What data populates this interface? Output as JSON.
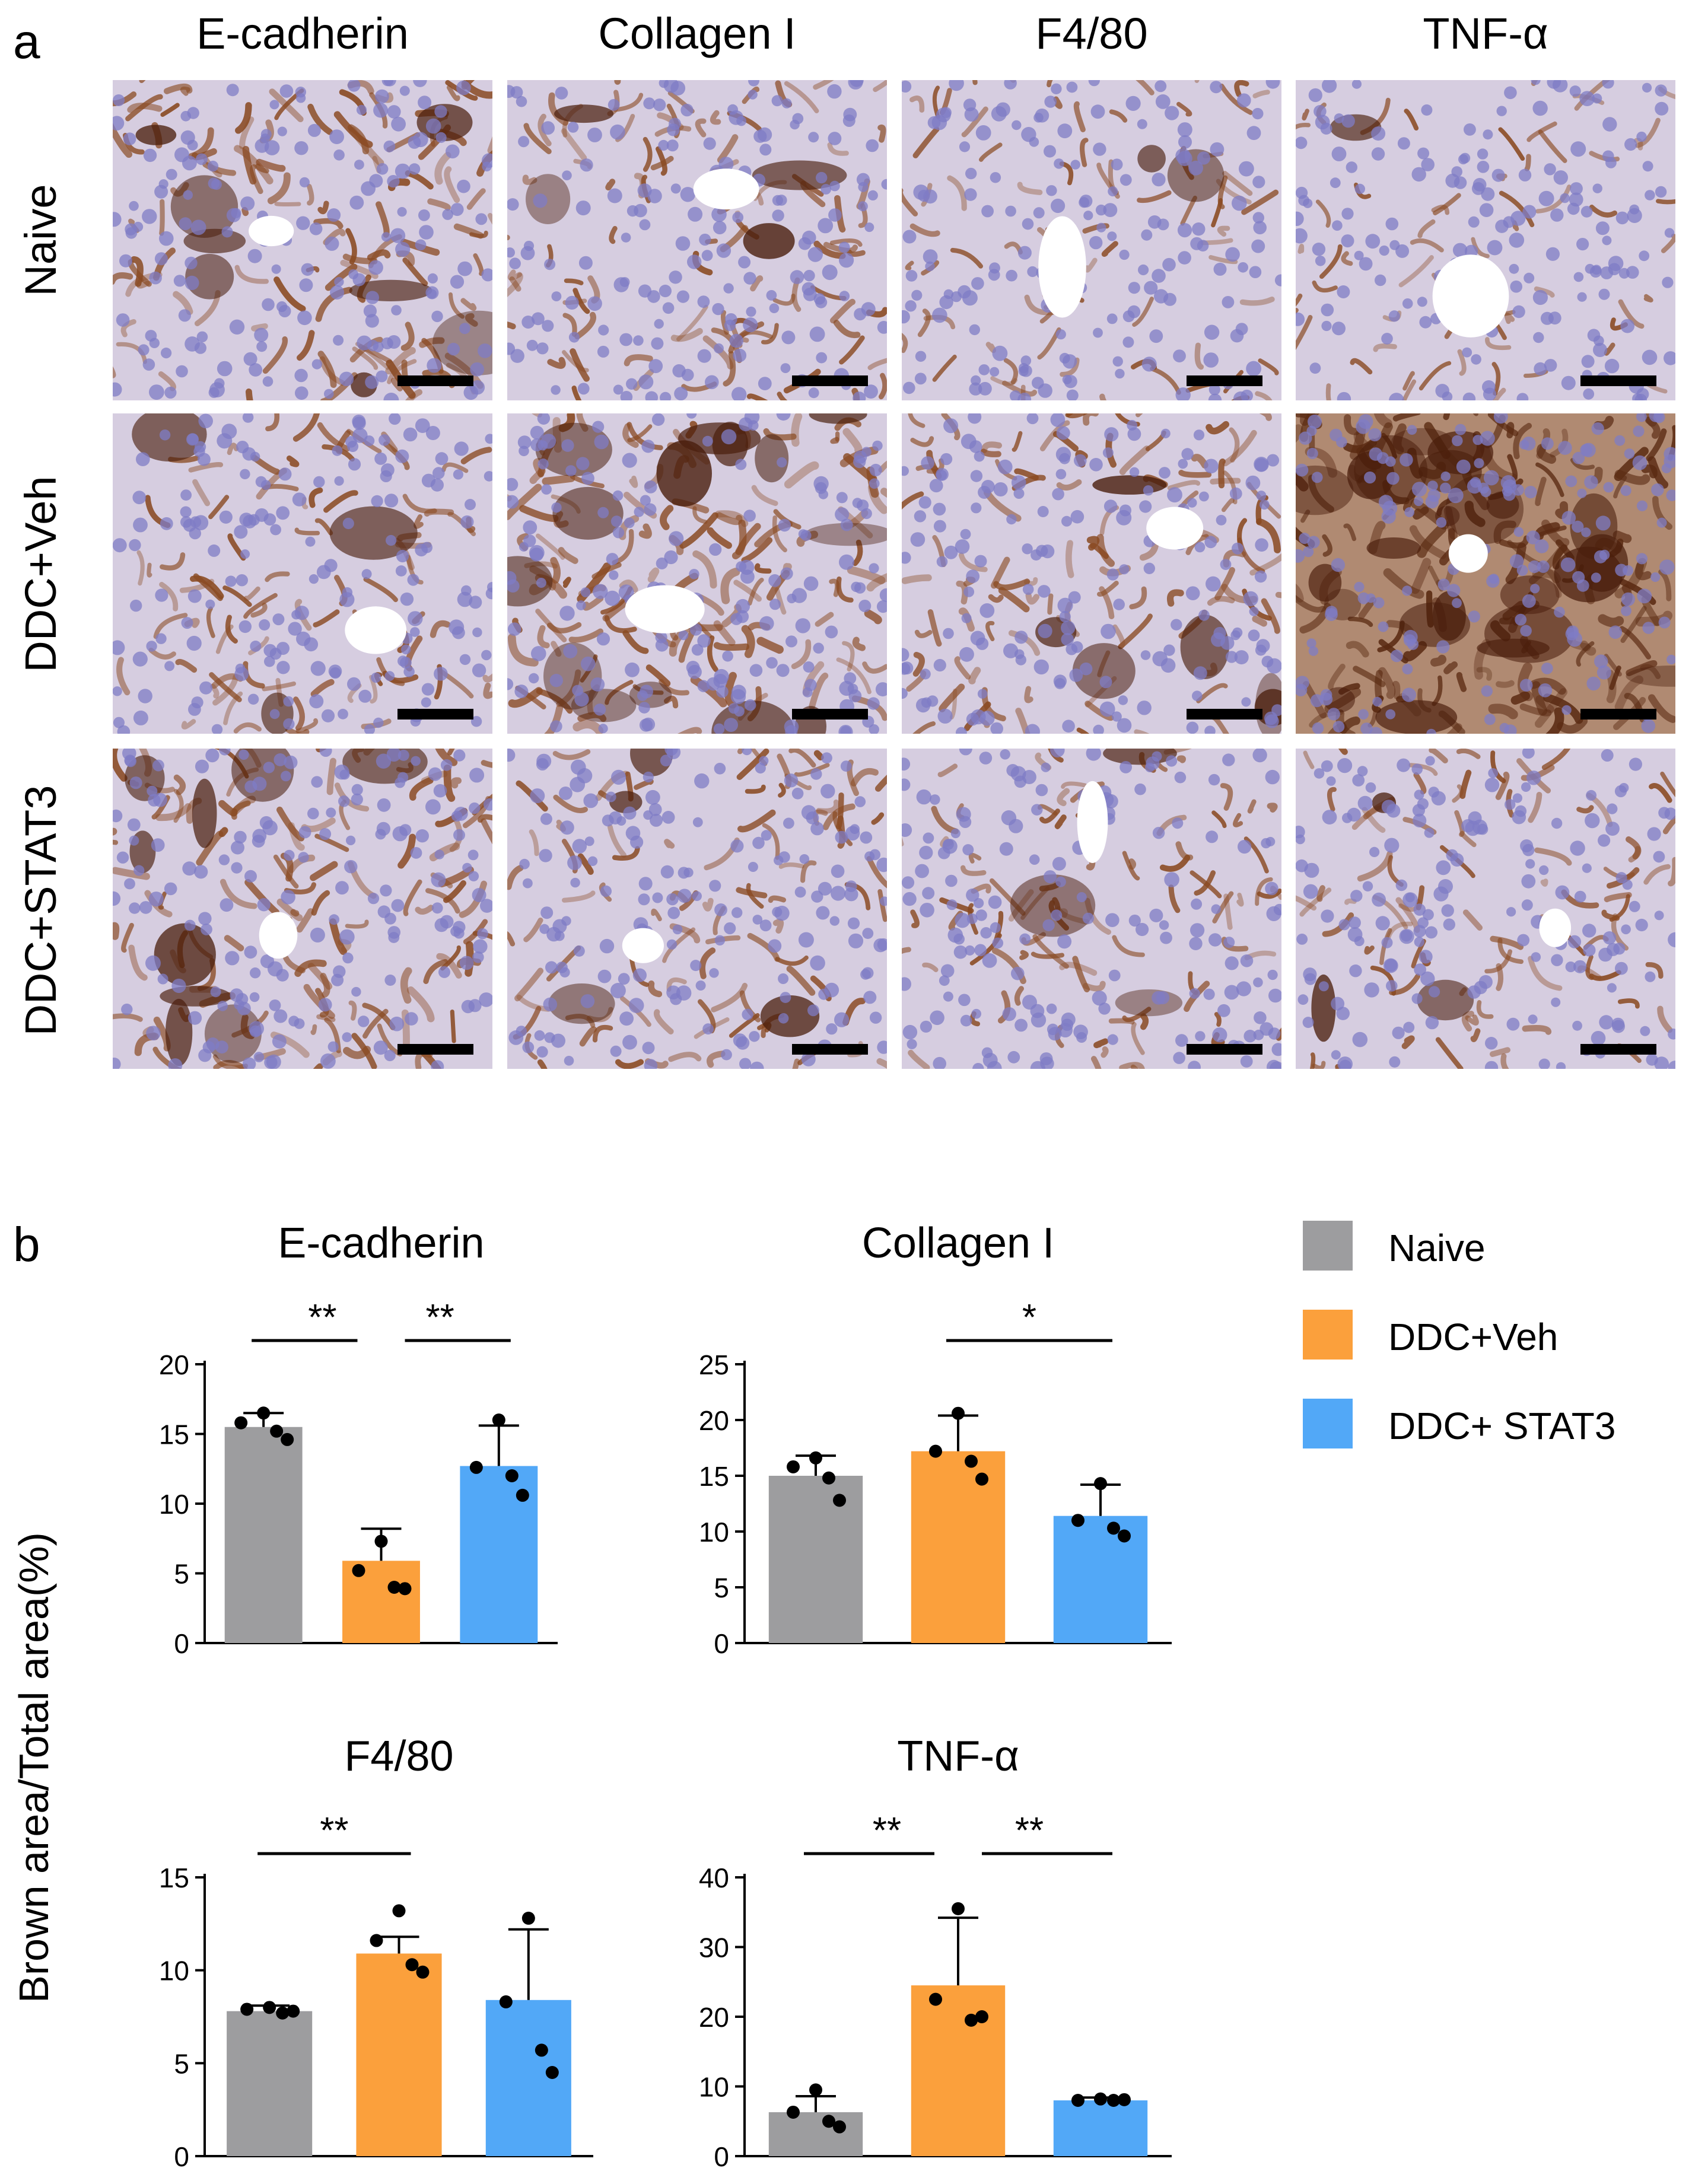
{
  "panel_a": {
    "letter": "a",
    "columns": [
      "E-cadherin",
      "Collagen I",
      "F4/80",
      "TNF-α"
    ],
    "rows": [
      "Naive",
      "DDC+Veh",
      "DDC+STAT3"
    ],
    "stain_intensity": [
      [
        0.55,
        0.4,
        0.25,
        0.15
      ],
      [
        0.35,
        0.75,
        0.5,
        0.95
      ],
      [
        0.6,
        0.4,
        0.35,
        0.35
      ]
    ]
  },
  "panel_b": {
    "letter": "b",
    "ylabel": "Brown area/Total area(%)",
    "legend": [
      {
        "label": "Naive",
        "color": "#9d9d9f"
      },
      {
        "label": "DDC+Veh",
        "color": "#fba03c"
      },
      {
        "label": "DDC+ STAT3",
        "color": "#52a8f7"
      }
    ]
  },
  "chart_data": [
    {
      "type": "bar",
      "title": "E-cadherin",
      "categories": [
        "Naive",
        "DDC+Veh",
        "DDC+ STAT3"
      ],
      "values": [
        15.5,
        5.9,
        12.7
      ],
      "errors": [
        1.0,
        2.3,
        2.9
      ],
      "points": [
        [
          16.5,
          15.8,
          15.2,
          14.6
        ],
        [
          7.3,
          5.2,
          4.0,
          3.9
        ],
        [
          16.0,
          12.6,
          12.0,
          10.6
        ]
      ],
      "ylim": [
        0,
        20
      ],
      "yticks": [
        0,
        5,
        10,
        15,
        20
      ],
      "significance": [
        {
          "from": 0,
          "to": 1,
          "label": "**"
        },
        {
          "from": 1,
          "to": 2,
          "label": "**"
        }
      ]
    },
    {
      "type": "bar",
      "title": "Collagen I",
      "categories": [
        "Naive",
        "DDC+Veh",
        "DDC+ STAT3"
      ],
      "values": [
        15.0,
        17.2,
        11.4
      ],
      "errors": [
        1.8,
        3.2,
        2.8
      ],
      "points": [
        [
          16.6,
          15.8,
          14.8,
          12.8
        ],
        [
          20.6,
          17.2,
          16.3,
          14.7
        ],
        [
          14.3,
          11.0,
          10.3,
          9.6
        ]
      ],
      "ylim": [
        0,
        25
      ],
      "yticks": [
        0,
        5,
        10,
        15,
        20,
        25
      ],
      "significance": [
        {
          "from": 1,
          "to": 2,
          "label": "*"
        }
      ]
    },
    {
      "type": "bar",
      "title": "F4/80",
      "categories": [
        "Naive",
        "DDC+Veh",
        "DDC+ STAT3"
      ],
      "values": [
        7.8,
        10.9,
        8.4
      ],
      "errors": [
        0.3,
        0.9,
        3.8
      ],
      "points": [
        [
          8.0,
          7.9,
          7.7,
          7.8
        ],
        [
          13.2,
          11.6,
          10.3,
          9.9
        ],
        [
          12.8,
          8.3,
          5.7,
          4.5
        ]
      ],
      "ylim": [
        0,
        15
      ],
      "yticks": [
        0,
        5,
        10,
        15
      ],
      "significance": [
        {
          "from": 0,
          "to": 1,
          "label": "**"
        }
      ]
    },
    {
      "type": "bar",
      "title": "TNF-α",
      "categories": [
        "Naive",
        "DDC+Veh",
        "DDC+ STAT3"
      ],
      "values": [
        6.3,
        24.5,
        8.0
      ],
      "errors": [
        2.3,
        9.7,
        0.4
      ],
      "points": [
        [
          9.5,
          6.3,
          5.0,
          4.2
        ],
        [
          35.5,
          22.5,
          19.5,
          20.0
        ],
        [
          8.2,
          8.0,
          8.0,
          8.1
        ]
      ],
      "ylim": [
        0,
        40
      ],
      "yticks": [
        0,
        10,
        20,
        30,
        40
      ],
      "significance": [
        {
          "from": 0,
          "to": 1,
          "label": "**"
        },
        {
          "from": 1,
          "to": 2,
          "label": "**"
        }
      ]
    }
  ]
}
